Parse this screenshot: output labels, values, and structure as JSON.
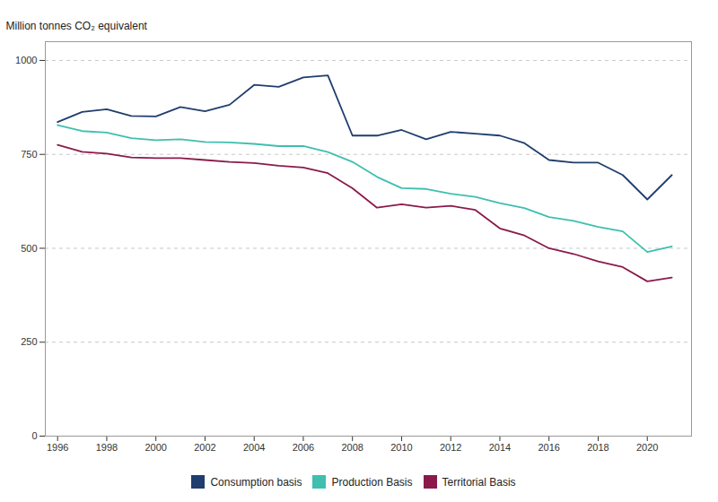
{
  "chart_data": {
    "type": "line",
    "y_label": "Million tonnes CO₂ equivalent",
    "x": [
      1996,
      1997,
      1998,
      1999,
      2000,
      2001,
      2002,
      2003,
      2004,
      2005,
      2006,
      2007,
      2008,
      2009,
      2010,
      2011,
      2012,
      2013,
      2014,
      2015,
      2016,
      2017,
      2018,
      2019,
      2020,
      2021
    ],
    "series": [
      {
        "name": "Consumption basis",
        "color": "#1f3d6e",
        "values": [
          836,
          863,
          870,
          852,
          851,
          876,
          865,
          882,
          935,
          930,
          955,
          960,
          800,
          800,
          815,
          790,
          810,
          805,
          800,
          780,
          735,
          728,
          728,
          695,
          630,
          695
        ]
      },
      {
        "name": "Production Basis",
        "color": "#3ebfb0",
        "values": [
          828,
          812,
          808,
          793,
          788,
          790,
          783,
          782,
          778,
          772,
          772,
          756,
          730,
          690,
          660,
          658,
          645,
          637,
          620,
          607,
          583,
          573,
          557,
          545,
          490,
          505
        ]
      },
      {
        "name": "Territorial Basis",
        "color": "#8b1a4a",
        "values": [
          775,
          757,
          752,
          742,
          740,
          740,
          735,
          730,
          727,
          720,
          715,
          700,
          660,
          608,
          617,
          608,
          613,
          602,
          553,
          534,
          500,
          485,
          465,
          450,
          412,
          422
        ]
      }
    ],
    "xlim": [
      1995.5,
      2021.8
    ],
    "xticks": [
      1996,
      1998,
      2000,
      2002,
      2004,
      2006,
      2008,
      2010,
      2012,
      2014,
      2016,
      2018,
      2020
    ],
    "ylim": [
      0,
      1050
    ],
    "yticks": [
      0,
      250,
      500,
      750,
      1000
    ],
    "grid": true,
    "legend": "bottom"
  }
}
